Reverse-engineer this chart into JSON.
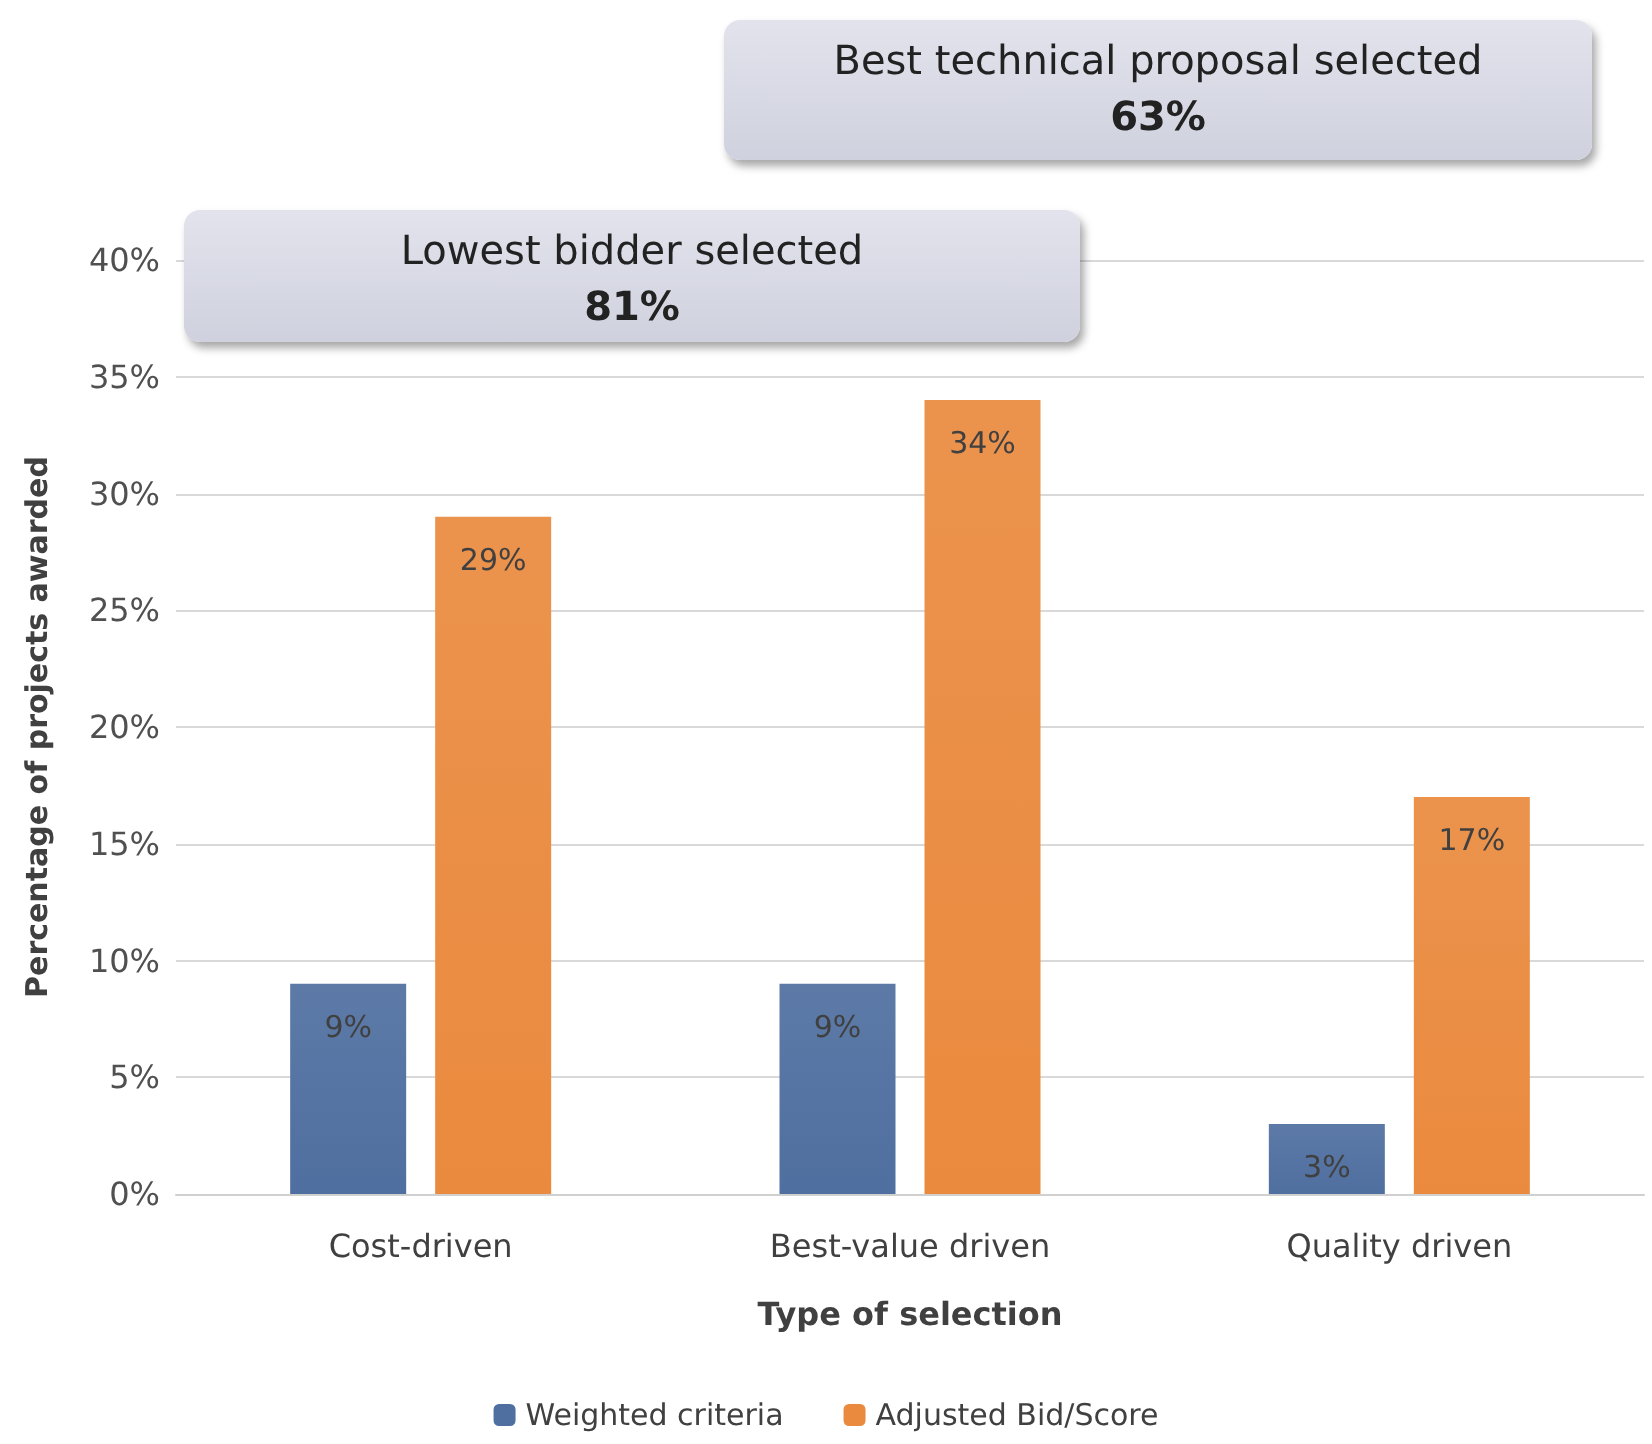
{
  "chart_data": {
    "type": "bar",
    "xlabel": "Type of selection",
    "ylabel": "Percentage of projects awarded",
    "categories": [
      "Cost-driven",
      "Best-value driven",
      "Quality driven"
    ],
    "series": [
      {
        "name": "Weighted criteria",
        "color": "#4f6fa0",
        "values": [
          9,
          9,
          3
        ],
        "value_labels": [
          "9%",
          "9%",
          "3%"
        ]
      },
      {
        "name": "Adjusted Bid/Score",
        "color": "#ea8a3e",
        "values": [
          29,
          34,
          17
        ],
        "value_labels": [
          "29%",
          "34%",
          "17%"
        ]
      }
    ],
    "ylim": [
      0,
      40
    ],
    "yticks": [
      {
        "value": 0,
        "label": "0%"
      },
      {
        "value": 5,
        "label": "5%"
      },
      {
        "value": 10,
        "label": "10%"
      },
      {
        "value": 15,
        "label": "15%"
      },
      {
        "value": 20,
        "label": "20%"
      },
      {
        "value": 25,
        "label": "25%"
      },
      {
        "value": 30,
        "label": "30%"
      },
      {
        "value": 35,
        "label": "35%"
      },
      {
        "value": 40,
        "label": "40%"
      }
    ],
    "grid": "y",
    "legend": "bottom",
    "annotations": [
      "Best technical proposal selected\n63%",
      "Lowest bidder selected\n81%"
    ]
  }
}
